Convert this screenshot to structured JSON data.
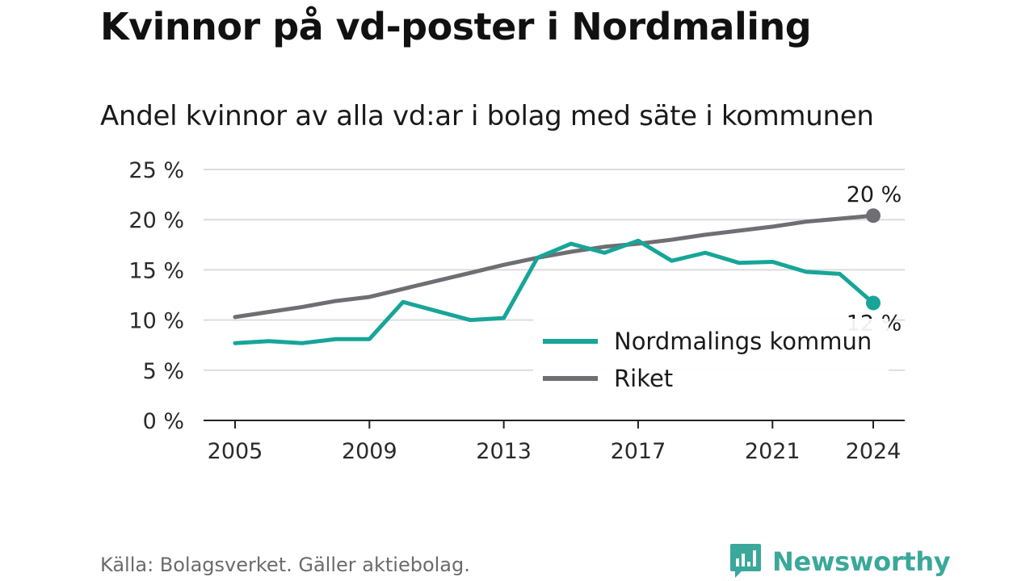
{
  "header": {
    "title": "Kvinnor på vd-poster i Nordmaling",
    "subtitle": "Andel kvinnor av alla vd:ar i bolag med säte i kommunen"
  },
  "footer": {
    "source": "Källa: Bolagsverket. Gäller aktiebolag.",
    "brand": "Newsworthy",
    "brand_icon": "chart-bars-icon",
    "brand_color": "#3aa89a"
  },
  "chart_data": {
    "type": "line",
    "x": [
      2005,
      2006,
      2007,
      2008,
      2009,
      2010,
      2011,
      2012,
      2013,
      2014,
      2015,
      2016,
      2017,
      2018,
      2019,
      2020,
      2021,
      2022,
      2023,
      2024
    ],
    "series": [
      {
        "name": "Nordmalings kommun",
        "color": "#17a598",
        "values": [
          7.7,
          7.9,
          7.7,
          8.1,
          8.1,
          11.8,
          10.9,
          10.0,
          10.2,
          16.2,
          17.6,
          16.7,
          17.9,
          15.9,
          16.7,
          15.7,
          15.8,
          14.8,
          14.6,
          11.7
        ],
        "end_label": "12 %"
      },
      {
        "name": "Riket",
        "color": "#6e6e73",
        "values": [
          10.3,
          10.8,
          11.3,
          11.9,
          12.3,
          13.1,
          13.9,
          14.7,
          15.5,
          16.2,
          16.8,
          17.3,
          17.6,
          18.0,
          18.5,
          18.9,
          19.3,
          19.8,
          20.1,
          20.4
        ],
        "end_label": "20 %"
      }
    ],
    "y_ticks": [
      "0 %",
      "5 %",
      "10 %",
      "15 %",
      "20 %",
      "25 %"
    ],
    "x_ticks": [
      2005,
      2009,
      2013,
      2017,
      2021,
      2024
    ],
    "ylim": [
      0,
      25
    ],
    "xlim": [
      2005,
      2024
    ],
    "grid": true,
    "legend_placement": "bottom-right"
  }
}
